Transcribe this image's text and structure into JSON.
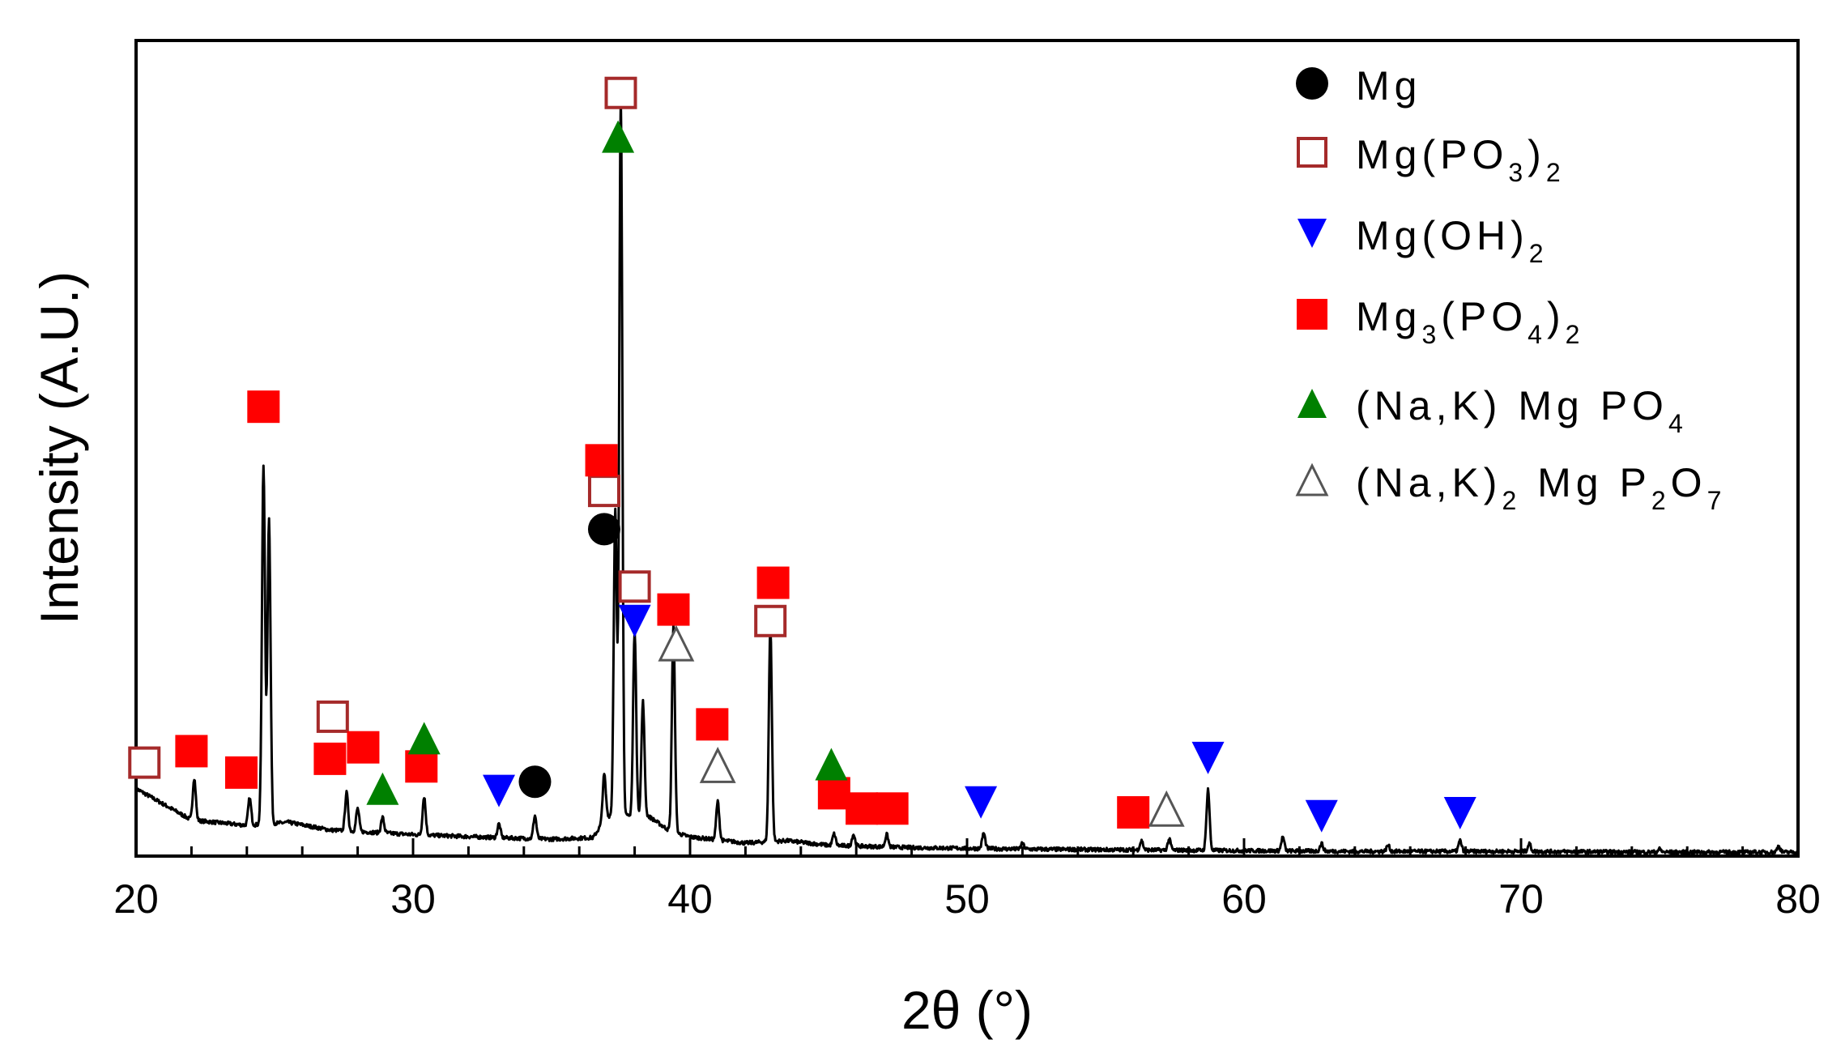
{
  "chart_data": {
    "type": "line",
    "title": "",
    "xlabel": "2θ (°)",
    "ylabel": "Intensity (A.U.)",
    "xlim": [
      20,
      80
    ],
    "ylim": [
      0,
      100
    ],
    "xticks": [
      20,
      30,
      40,
      50,
      60,
      70,
      80
    ],
    "xtick_labels": [
      "20",
      "30",
      "40",
      "50",
      "60",
      "70",
      "80"
    ],
    "grid": false,
    "legend_position": "top-right",
    "baseline": [
      [
        20.0,
        8.6
      ],
      [
        22.0,
        4.5
      ],
      [
        24.0,
        3.8
      ],
      [
        25.5,
        4.2
      ],
      [
        27.0,
        3.2
      ],
      [
        30.0,
        2.6
      ],
      [
        33.0,
        2.2
      ],
      [
        35.0,
        2.0
      ],
      [
        36.5,
        2.2
      ],
      [
        37.0,
        5.0
      ],
      [
        38.5,
        5.0
      ],
      [
        39.3,
        3.0
      ],
      [
        40.0,
        2.3
      ],
      [
        42.0,
        1.5
      ],
      [
        43.5,
        1.8
      ],
      [
        45.0,
        1.2
      ],
      [
        48.0,
        0.9
      ],
      [
        52.0,
        0.7
      ],
      [
        56.0,
        0.6
      ],
      [
        60.0,
        0.5
      ],
      [
        64.0,
        0.4
      ],
      [
        70.0,
        0.4
      ],
      [
        75.0,
        0.3
      ],
      [
        80.0,
        0.3
      ]
    ],
    "peaks": [
      {
        "x": 22.1,
        "y": 5.5
      },
      {
        "x": 24.1,
        "y": 3.5
      },
      {
        "x": 24.6,
        "y": 47.0
      },
      {
        "x": 24.8,
        "y": 40.0
      },
      {
        "x": 27.6,
        "y": 5.0
      },
      {
        "x": 28.0,
        "y": 3.0
      },
      {
        "x": 28.9,
        "y": 2.0
      },
      {
        "x": 30.4,
        "y": 5.0
      },
      {
        "x": 33.1,
        "y": 1.8
      },
      {
        "x": 34.4,
        "y": 3.0
      },
      {
        "x": 36.9,
        "y": 6.0
      },
      {
        "x": 37.5,
        "y": 94.0
      },
      {
        "x": 37.3,
        "y": 40.0
      },
      {
        "x": 38.0,
        "y": 24.0
      },
      {
        "x": 38.3,
        "y": 15.0
      },
      {
        "x": 39.4,
        "y": 27.0
      },
      {
        "x": 41.0,
        "y": 5.0
      },
      {
        "x": 42.9,
        "y": 28.0
      },
      {
        "x": 45.2,
        "y": 1.5
      },
      {
        "x": 45.9,
        "y": 1.5
      },
      {
        "x": 47.1,
        "y": 1.6
      },
      {
        "x": 50.6,
        "y": 2.0
      },
      {
        "x": 52.0,
        "y": 0.7
      },
      {
        "x": 56.3,
        "y": 1.2
      },
      {
        "x": 57.3,
        "y": 1.4
      },
      {
        "x": 58.7,
        "y": 8.0
      },
      {
        "x": 61.4,
        "y": 1.8
      },
      {
        "x": 62.8,
        "y": 1.0
      },
      {
        "x": 65.2,
        "y": 0.8
      },
      {
        "x": 67.8,
        "y": 1.4
      },
      {
        "x": 70.3,
        "y": 1.0
      },
      {
        "x": 75.0,
        "y": 0.4
      },
      {
        "x": 79.3,
        "y": 0.8
      }
    ],
    "legend": [
      {
        "key": "Mg",
        "label": "Mg",
        "sub1": "",
        "mid": "",
        "sub2": "",
        "marker": "circle",
        "color": "#000000",
        "filled": true
      },
      {
        "key": "MgPO3",
        "label": "Mg(PO",
        "sub1": "3",
        "mid": ")",
        "sub2": "2",
        "marker": "square",
        "color": "#a52a2a",
        "filled": false
      },
      {
        "key": "MgOH",
        "label": "Mg(OH)",
        "sub1": "2",
        "mid": "",
        "sub2": "",
        "marker": "triangle-down",
        "color": "#0000ff",
        "filled": true
      },
      {
        "key": "Mg3PO4",
        "label": "Mg",
        "sub1": "3",
        "mid": "(PO",
        "sub2": "4",
        "tail": ")",
        "sub3": "2",
        "marker": "square",
        "color": "#ff0000",
        "filled": true
      },
      {
        "key": "NaKMgPO4",
        "label": "(Na,K) Mg PO",
        "sub1": "4",
        "mid": "",
        "sub2": "",
        "marker": "triangle-up",
        "color": "#008000",
        "filled": true
      },
      {
        "key": "NaK2MgP2O7",
        "label": "(Na,K)",
        "sub1": "2",
        "mid": " Mg P",
        "sub2": "2",
        "tail": "O",
        "sub3": "7",
        "marker": "triangle-up",
        "color": "#555555",
        "filled": false
      }
    ],
    "markers": [
      {
        "series": "Mg",
        "x": 36.9,
        "y": 42.5
      },
      {
        "series": "Mg",
        "x": 34.4,
        "y": 9.5
      },
      {
        "series": "MgPO3",
        "x": 20.3,
        "y": 12.0
      },
      {
        "series": "MgPO3",
        "x": 27.1,
        "y": 18.0
      },
      {
        "series": "MgPO3",
        "x": 36.9,
        "y": 47.5
      },
      {
        "series": "MgPO3",
        "x": 37.5,
        "y": 99.5
      },
      {
        "series": "MgPO3",
        "x": 38.0,
        "y": 35.0
      },
      {
        "series": "MgPO3",
        "x": 42.9,
        "y": 30.5
      },
      {
        "series": "MgOH",
        "x": 33.1,
        "y": 8.3
      },
      {
        "series": "MgOH",
        "x": 38.0,
        "y": 30.5
      },
      {
        "series": "MgOH",
        "x": 50.5,
        "y": 6.8
      },
      {
        "series": "MgOH",
        "x": 58.7,
        "y": 12.6
      },
      {
        "series": "MgOH",
        "x": 62.8,
        "y": 5.0
      },
      {
        "series": "MgOH",
        "x": 67.8,
        "y": 5.4
      },
      {
        "series": "Mg3PO4",
        "x": 22.0,
        "y": 13.5
      },
      {
        "series": "Mg3PO4",
        "x": 23.8,
        "y": 10.7
      },
      {
        "series": "Mg3PO4",
        "x": 24.6,
        "y": 58.5
      },
      {
        "series": "Mg3PO4",
        "x": 27.0,
        "y": 12.5
      },
      {
        "series": "Mg3PO4",
        "x": 28.2,
        "y": 14.0
      },
      {
        "series": "Mg3PO4",
        "x": 30.3,
        "y": 11.5
      },
      {
        "series": "Mg3PO4",
        "x": 36.8,
        "y": 51.5
      },
      {
        "series": "Mg3PO4",
        "x": 39.4,
        "y": 32.0
      },
      {
        "series": "Mg3PO4",
        "x": 40.8,
        "y": 17.0
      },
      {
        "series": "Mg3PO4",
        "x": 43.0,
        "y": 35.5
      },
      {
        "series": "Mg3PO4",
        "x": 45.2,
        "y": 8.0
      },
      {
        "series": "Mg3PO4",
        "x": 46.2,
        "y": 6.0
      },
      {
        "series": "Mg3PO4",
        "x": 47.3,
        "y": 6.0
      },
      {
        "series": "Mg3PO4",
        "x": 56.0,
        "y": 5.5
      },
      {
        "series": "NaKMgPO4",
        "x": 37.4,
        "y": 93.8
      },
      {
        "series": "NaKMgPO4",
        "x": 30.4,
        "y": 15.2
      },
      {
        "series": "NaKMgPO4",
        "x": 28.9,
        "y": 8.6
      },
      {
        "series": "NaKMgPO4",
        "x": 45.1,
        "y": 11.8
      },
      {
        "series": "NaK2MgP2O7",
        "x": 39.5,
        "y": 27.5
      },
      {
        "series": "NaK2MgP2O7",
        "x": 41.0,
        "y": 11.6
      },
      {
        "series": "NaK2MgP2O7",
        "x": 57.2,
        "y": 5.9
      }
    ]
  }
}
